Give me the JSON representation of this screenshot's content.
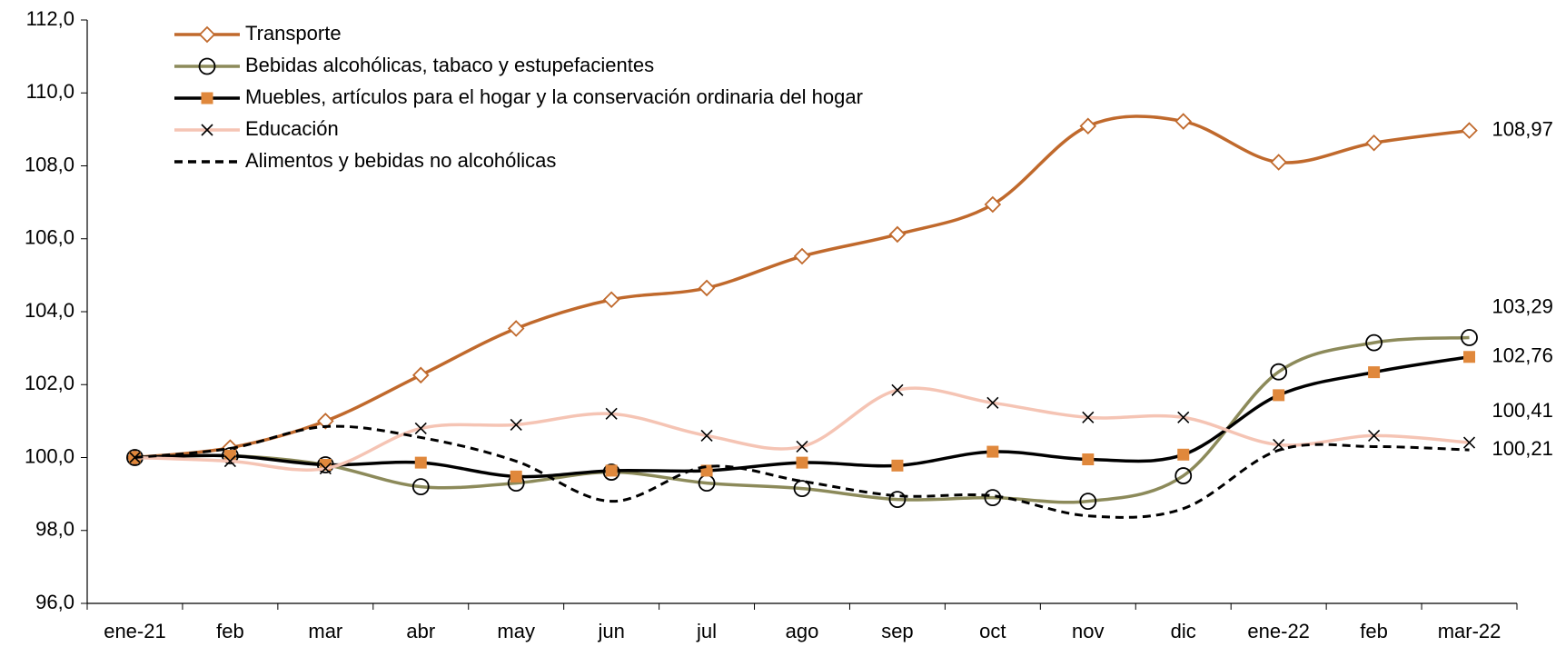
{
  "chart_data": {
    "type": "line",
    "categories": [
      "ene-21",
      "feb",
      "mar",
      "abr",
      "may",
      "jun",
      "jul",
      "ago",
      "sep",
      "oct",
      "nov",
      "dic",
      "ene-22",
      "feb",
      "mar-22"
    ],
    "ylim": [
      96,
      112
    ],
    "yticks": [
      {
        "value": 96,
        "label": "96,0"
      },
      {
        "value": 98,
        "label": "98,0"
      },
      {
        "value": 100,
        "label": "100,0"
      },
      {
        "value": 102,
        "label": "102,0"
      },
      {
        "value": 104,
        "label": "104,0"
      },
      {
        "value": 106,
        "label": "106,0"
      },
      {
        "value": 108,
        "label": "108,0"
      },
      {
        "value": 110,
        "label": "110,0"
      },
      {
        "value": 112,
        "label": "112,0"
      }
    ],
    "legend": "top-left",
    "series": [
      {
        "name": "Transporte",
        "color": "#c0692c",
        "marker": "diamond",
        "marker_color": "#ffffff",
        "dashed": false,
        "values": [
          100,
          100.27,
          101.0,
          102.26,
          103.54,
          104.33,
          104.65,
          105.52,
          106.12,
          106.94,
          109.09,
          109.22,
          108.1,
          108.63,
          108.97
        ],
        "value_labels": [
          null,
          null,
          null,
          null,
          null,
          null,
          null,
          null,
          null,
          null,
          null,
          null,
          null,
          null,
          "108,97"
        ],
        "label_color": "#000000"
      },
      {
        "name": "Bebidas alcohólicas, tabaco y estupefacientes",
        "color": "#8c8a5a",
        "marker": "circle",
        "marker_color": "#ffffff",
        "dashed": false,
        "values": [
          100,
          100.05,
          99.8,
          99.2,
          99.3,
          99.6,
          99.3,
          99.15,
          98.85,
          98.9,
          98.8,
          99.5,
          102.35,
          103.15,
          103.29
        ],
        "value_labels": [
          null,
          null,
          null,
          null,
          null,
          null,
          null,
          null,
          null,
          null,
          null,
          null,
          null,
          null,
          "103,29"
        ],
        "label_color": "#8c8a1e"
      },
      {
        "name": "Muebles, artículos para el hogar y la conservación ordinaria del hogar",
        "color": "#000000",
        "marker": "square",
        "marker_color": "#e0883c",
        "dashed": false,
        "values": [
          100,
          100.05,
          99.8,
          99.86,
          99.48,
          99.64,
          99.64,
          99.86,
          99.78,
          100.16,
          99.95,
          100.08,
          101.71,
          102.34,
          102.76
        ],
        "value_labels": [
          null,
          null,
          null,
          null,
          null,
          null,
          null,
          null,
          null,
          null,
          null,
          null,
          null,
          null,
          "102,76"
        ],
        "label_color": "#000000"
      },
      {
        "name": "Educación",
        "color": "#f5c4b4",
        "marker": "cross",
        "marker_color": "#000000",
        "dashed": false,
        "values": [
          100,
          99.9,
          99.7,
          100.8,
          100.9,
          101.2,
          100.6,
          100.3,
          101.85,
          101.5,
          101.1,
          101.1,
          100.35,
          100.6,
          100.41
        ],
        "value_labels": [
          null,
          null,
          null,
          null,
          null,
          null,
          null,
          null,
          null,
          null,
          null,
          null,
          null,
          null,
          "100,41"
        ],
        "label_color": "#000000"
      },
      {
        "name": "Alimentos y bebidas no alcohólicas",
        "color": "#000000",
        "marker": "none",
        "marker_color": "#000000",
        "dashed": true,
        "values": [
          100,
          100.25,
          100.85,
          100.55,
          99.9,
          98.8,
          99.75,
          99.35,
          98.95,
          98.95,
          98.4,
          98.6,
          100.2,
          100.3,
          100.21
        ],
        "value_labels": [
          null,
          null,
          null,
          null,
          null,
          null,
          null,
          null,
          null,
          null,
          null,
          null,
          null,
          null,
          "100,21"
        ],
        "label_color": "#000000"
      }
    ]
  }
}
